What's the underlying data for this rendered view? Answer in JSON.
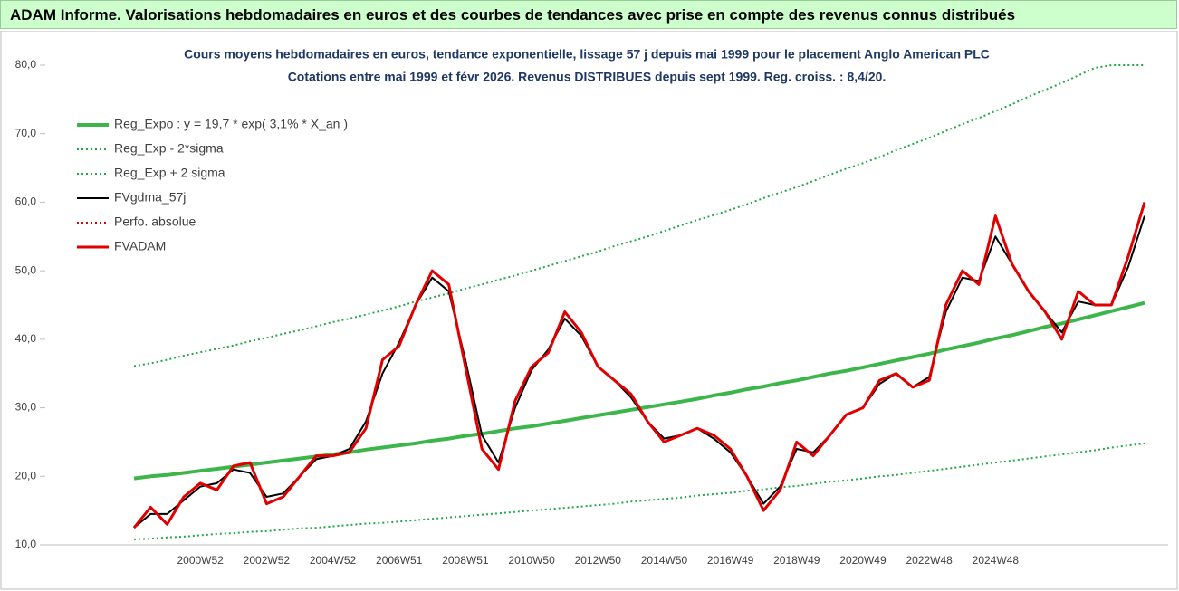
{
  "header": {
    "title": "ADAM Informe. Valorisations hebdomadaires en euros et des courbes de tendances avec prise en compte des revenus connus distribués"
  },
  "chart_data": {
    "type": "line",
    "title": "Cours moyens hebdomadaires en euros, tendance exponentielle, lissage 57 j depuis mai 1999 pour le placement Anglo American PLC",
    "subtitle": "Cotations entre mai 1999 et févr 2026. Revenus DISTRIBUES depuis sept 1999. Reg. croiss. : 8,4/20.",
    "categories": [
      null,
      null,
      null,
      null,
      "2000W52",
      null,
      null,
      null,
      "2002W52",
      null,
      null,
      null,
      "2004W52",
      null,
      null,
      null,
      "2006W51",
      null,
      null,
      null,
      "2008W51",
      null,
      null,
      null,
      "2010W50",
      null,
      null,
      null,
      "2012W50",
      null,
      null,
      null,
      "2014W50",
      null,
      null,
      null,
      "2016W49",
      null,
      null,
      null,
      "2018W49",
      null,
      null,
      null,
      "2020W49",
      null,
      null,
      null,
      "2022W48",
      null,
      null,
      null,
      "2024W48",
      null,
      null,
      null,
      null,
      null,
      null,
      null,
      null,
      null
    ],
    "ylim": [
      10,
      80
    ],
    "yticks": [
      {
        "value": 10,
        "label": "10,0"
      },
      {
        "value": 20,
        "label": "20,0"
      },
      {
        "value": 30,
        "label": "30,0"
      },
      {
        "value": 40,
        "label": "40,0"
      },
      {
        "value": 50,
        "label": "50,0"
      },
      {
        "value": 60,
        "label": "60,0"
      },
      {
        "value": 70,
        "label": "70,0"
      },
      {
        "value": 80,
        "label": "80,0"
      }
    ],
    "legend": "upper left",
    "series": [
      {
        "name": "Reg_Expo : y = 19,7 * exp( 3,1% *  X_an )",
        "color": "#3cb54a",
        "line_style": "solid",
        "width": 4,
        "values": [
          19.7,
          20.0,
          20.2,
          20.5,
          20.8,
          21.1,
          21.4,
          21.7,
          22.0,
          22.3,
          22.6,
          22.9,
          23.2,
          23.5,
          23.9,
          24.2,
          24.5,
          24.8,
          25.2,
          25.5,
          25.9,
          26.2,
          26.6,
          27.0,
          27.3,
          27.7,
          28.1,
          28.5,
          28.9,
          29.3,
          29.7,
          30.1,
          30.5,
          30.9,
          31.3,
          31.8,
          32.2,
          32.7,
          33.1,
          33.6,
          34.0,
          34.5,
          35.0,
          35.4,
          35.9,
          36.4,
          36.9,
          37.4,
          37.9,
          38.5,
          39.0,
          39.5,
          40.1,
          40.6,
          41.2,
          41.8,
          42.3,
          42.9,
          43.5,
          44.1,
          44.7,
          45.3
        ]
      },
      {
        "name": "Reg_Exp - 2*sigma",
        "color": "#22a84a",
        "line_style": "dotted",
        "width": 2,
        "values": [
          10.8,
          10.9,
          11.1,
          11.2,
          11.4,
          11.6,
          11.7,
          11.9,
          12.0,
          12.2,
          12.4,
          12.5,
          12.7,
          12.9,
          13.1,
          13.2,
          13.4,
          13.6,
          13.8,
          14.0,
          14.2,
          14.4,
          14.6,
          14.8,
          15.0,
          15.2,
          15.4,
          15.6,
          15.8,
          16.0,
          16.3,
          16.5,
          16.7,
          16.9,
          17.2,
          17.4,
          17.6,
          17.9,
          18.1,
          18.4,
          18.6,
          18.9,
          19.2,
          19.4,
          19.7,
          20.0,
          20.2,
          20.5,
          20.8,
          21.1,
          21.4,
          21.7,
          22.0,
          22.3,
          22.6,
          22.9,
          23.2,
          23.5,
          23.8,
          24.2,
          24.5,
          24.8
        ]
      },
      {
        "name": "Reg_Exp + 2 sigma",
        "color": "#22a84a",
        "line_style": "dotted",
        "width": 2,
        "values": [
          36.1,
          36.5,
          37.0,
          37.6,
          38.1,
          38.6,
          39.1,
          39.7,
          40.2,
          40.8,
          41.3,
          41.9,
          42.5,
          43.0,
          43.6,
          44.2,
          44.8,
          45.5,
          46.1,
          46.7,
          47.4,
          48.0,
          48.7,
          49.3,
          50.0,
          50.7,
          51.4,
          52.1,
          52.8,
          53.6,
          54.3,
          55.0,
          55.8,
          56.6,
          57.4,
          58.1,
          58.9,
          59.7,
          60.6,
          61.4,
          62.2,
          63.1,
          64.0,
          64.9,
          65.7,
          66.6,
          67.6,
          68.5,
          69.4,
          70.4,
          71.4,
          72.3,
          73.3,
          74.3,
          75.4,
          76.4,
          77.4,
          78.5,
          79.6,
          80,
          80,
          80
        ]
      },
      {
        "name": "FVgdma_57j",
        "color": "#000000",
        "line_style": "solid",
        "width": 2,
        "values": [
          12.5,
          14.5,
          14.5,
          16.5,
          18.5,
          19,
          21,
          20.5,
          17,
          17.5,
          20,
          22.5,
          23,
          24,
          28,
          35,
          39.5,
          45,
          49,
          47,
          37,
          26,
          22,
          30,
          35.5,
          38.5,
          43,
          40.5,
          36,
          34,
          31.5,
          28,
          25.5,
          26,
          27,
          25.5,
          23.5,
          20,
          16,
          18.5,
          24,
          23.5,
          26,
          29,
          30,
          33.5,
          35,
          33,
          34.5,
          44,
          49,
          48.5,
          55,
          51,
          47,
          44,
          41,
          45.5,
          45,
          45,
          50.5,
          58
        ]
      },
      {
        "name": "Perfo. absolue",
        "color": "#e00000",
        "line_style": "dotted",
        "width": 2,
        "values": [
          null,
          null,
          null,
          null,
          null,
          null,
          null,
          null,
          null,
          null,
          null,
          null,
          null,
          null,
          null,
          null,
          null,
          null,
          null,
          null,
          null,
          null,
          null,
          null,
          null,
          null,
          null,
          null,
          null,
          null,
          null,
          null,
          null,
          null,
          null,
          null,
          null,
          null,
          null,
          null,
          null,
          null,
          null,
          null,
          null,
          null,
          null,
          null,
          null,
          null,
          null,
          null,
          null,
          null,
          null,
          null,
          null,
          null,
          null,
          null,
          null,
          null
        ]
      },
      {
        "name": "FVADAM",
        "color": "#e00000",
        "line_style": "solid",
        "width": 3,
        "values": [
          12.5,
          15.5,
          13,
          17,
          19,
          18,
          21.5,
          22,
          16,
          17,
          20,
          23,
          23,
          23.5,
          27,
          37,
          39,
          45,
          50,
          48,
          36,
          24,
          21,
          31,
          36,
          38,
          44,
          41,
          36,
          34,
          32,
          28,
          25,
          26,
          27,
          26,
          24,
          20,
          15,
          18,
          25,
          23,
          26,
          29,
          30,
          34,
          35,
          33,
          34,
          45,
          50,
          48,
          58,
          51,
          47,
          44,
          40,
          47,
          45,
          45,
          52,
          60
        ]
      }
    ]
  }
}
